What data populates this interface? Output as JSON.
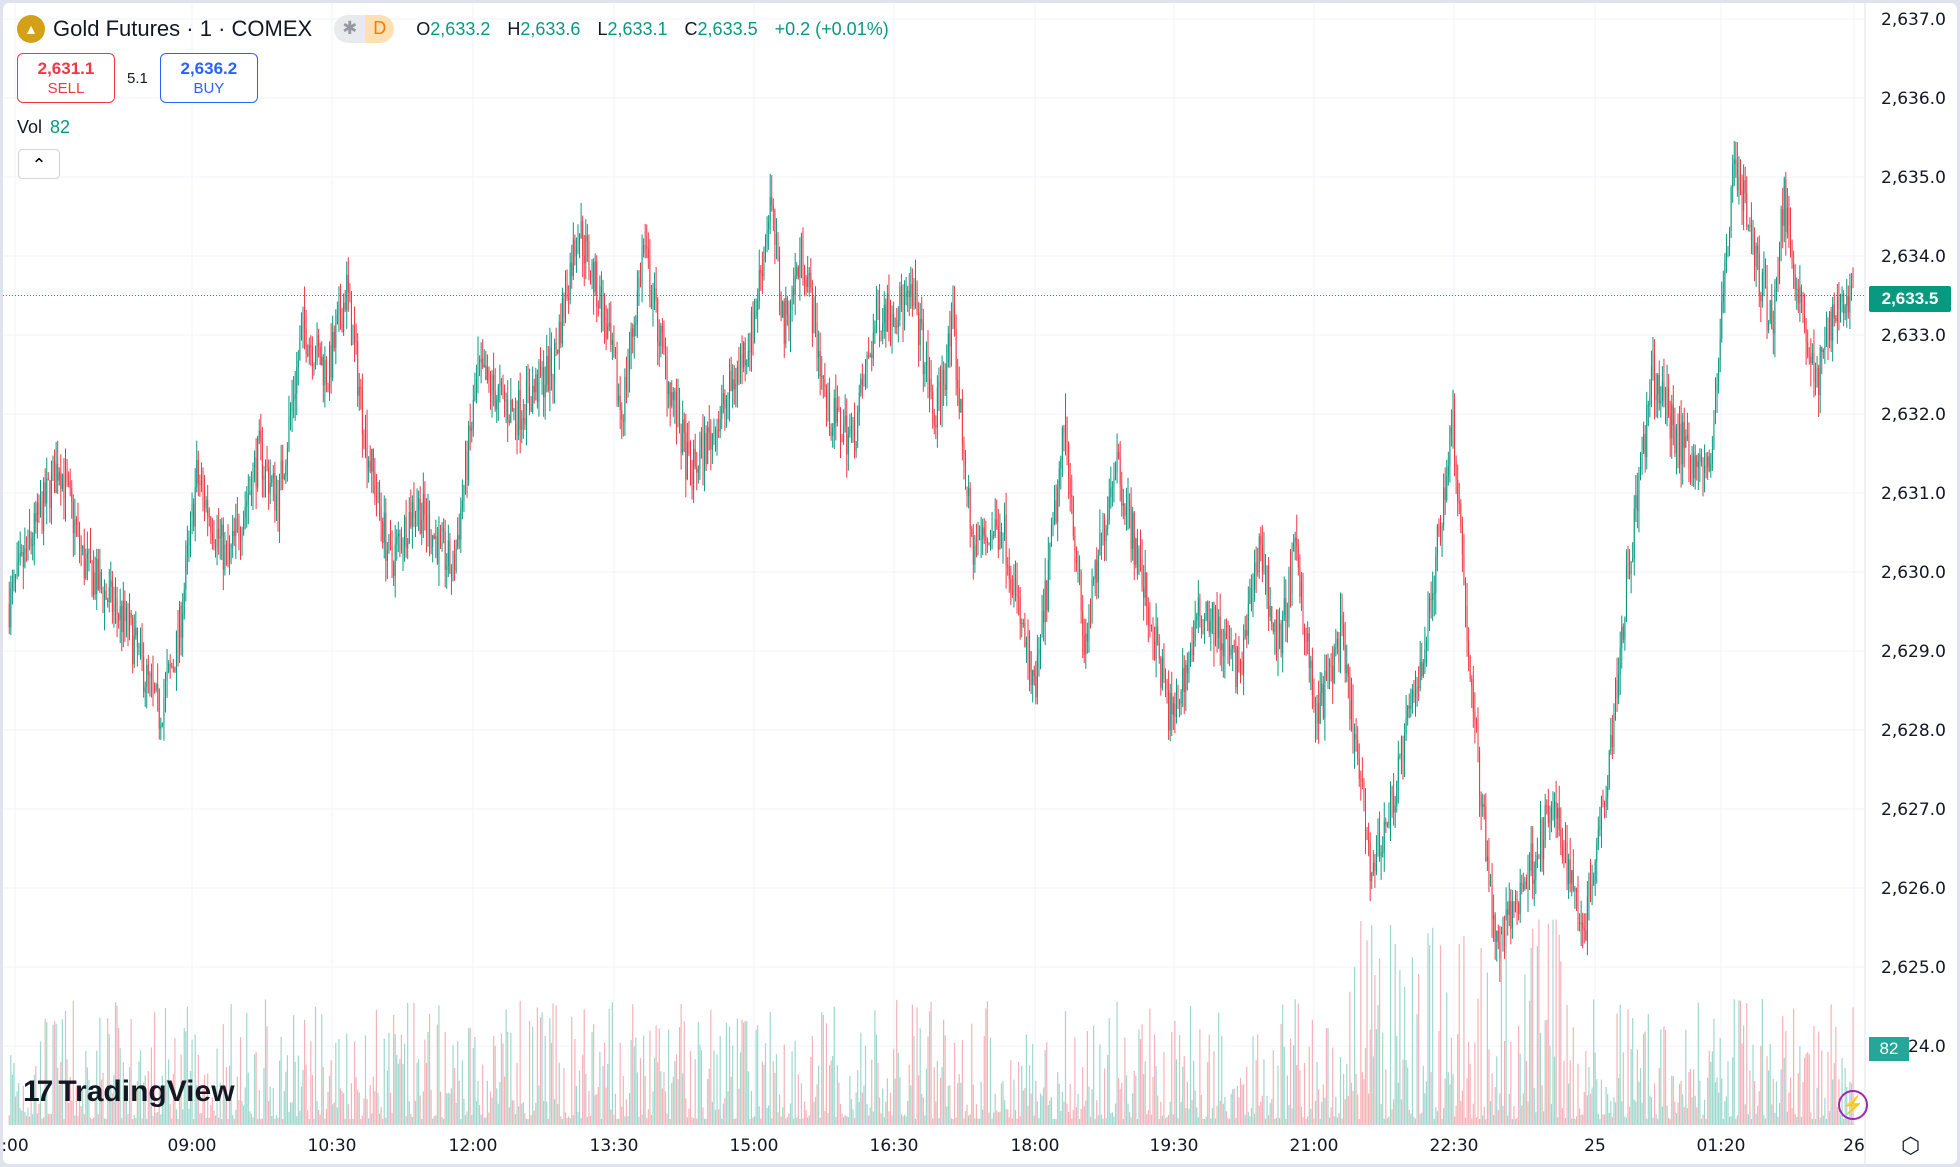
{
  "header": {
    "symbol": "Gold Futures · 1 · COMEX",
    "session_icon": "asterisk-icon",
    "session_badge": "D",
    "ohlc": {
      "o_label": "O",
      "o": "2,633.2",
      "h_label": "H",
      "h": "2,633.6",
      "l_label": "L",
      "l": "2,633.1",
      "c_label": "C",
      "c": "2,633.5",
      "change": "+0.2 (+0.01%)"
    }
  },
  "trade": {
    "sell_price": "2,631.1",
    "sell_label": "SELL",
    "spread": "5.1",
    "buy_price": "2,636.2",
    "buy_label": "BUY"
  },
  "volume": {
    "label": "Vol",
    "value": "82"
  },
  "price_axis": [
    "2,637.0",
    "2,636.0",
    "2,635.0",
    "2,634.0",
    "2,633.0",
    "2,632.0",
    "2,631.0",
    "2,630.0",
    "2,629.0",
    "2,628.0",
    "2,627.0",
    "2,626.0",
    "2,625.0",
    "24.0"
  ],
  "current_price": "2,633.5",
  "current_volume": "82",
  "time_axis": [
    ":00",
    "09:00",
    "10:30",
    "12:00",
    "13:30",
    "15:00",
    "16:30",
    "18:00",
    "19:30",
    "21:00",
    "22:30",
    "25",
    "01:20",
    "26"
  ],
  "brand": "TradingView",
  "colors": {
    "up": "#089981",
    "down": "#f23645",
    "vol_up": "#9fd8cf",
    "vol_down": "#f5b3b8"
  },
  "chart_data": {
    "type": "candlestick",
    "interval_minutes": 1,
    "price_range": [
      2624,
      2637
    ],
    "path_minutes_price": [
      [
        4,
        2629.6
      ],
      [
        36,
        2631.4
      ],
      [
        52,
        2630.1
      ],
      [
        80,
        2629.3
      ],
      [
        100,
        2628.2
      ],
      [
        112,
        2629.1
      ],
      [
        124,
        2631.2
      ],
      [
        144,
        2630.1
      ],
      [
        164,
        2631.5
      ],
      [
        176,
        2630.9
      ],
      [
        192,
        2633.1
      ],
      [
        208,
        2632.5
      ],
      [
        220,
        2633.6
      ],
      [
        232,
        2631.7
      ],
      [
        248,
        2630.1
      ],
      [
        264,
        2630.9
      ],
      [
        288,
        2630.0
      ],
      [
        304,
        2632.5
      ],
      [
        328,
        2632.0
      ],
      [
        352,
        2632.6
      ],
      [
        368,
        2634.4
      ],
      [
        384,
        2633.3
      ],
      [
        396,
        2632.0
      ],
      [
        410,
        2634.1
      ],
      [
        424,
        2632.6
      ],
      [
        440,
        2631.2
      ],
      [
        460,
        2632.0
      ],
      [
        480,
        2633.1
      ],
      [
        491,
        2634.7
      ],
      [
        500,
        2633.1
      ],
      [
        512,
        2634.1
      ],
      [
        528,
        2632.0
      ],
      [
        544,
        2631.7
      ],
      [
        560,
        2633.3
      ],
      [
        584,
        2633.4
      ],
      [
        596,
        2631.9
      ],
      [
        608,
        2633.1
      ],
      [
        620,
        2630.3
      ],
      [
        640,
        2630.6
      ],
      [
        660,
        2628.4
      ],
      [
        680,
        2631.9
      ],
      [
        692,
        2629.0
      ],
      [
        712,
        2631.5
      ],
      [
        728,
        2630.0
      ],
      [
        748,
        2628.1
      ],
      [
        768,
        2629.6
      ],
      [
        792,
        2628.7
      ],
      [
        804,
        2630.4
      ],
      [
        816,
        2629.0
      ],
      [
        828,
        2630.3
      ],
      [
        840,
        2628.1
      ],
      [
        856,
        2629.2
      ],
      [
        876,
        2626.2
      ],
      [
        888,
        2627.0
      ],
      [
        912,
        2629.3
      ],
      [
        928,
        2632.0
      ],
      [
        940,
        2628.4
      ],
      [
        956,
        2625.2
      ],
      [
        976,
        2626.2
      ],
      [
        992,
        2627.0
      ],
      [
        1012,
        2625.5
      ],
      [
        1028,
        2627.7
      ],
      [
        1040,
        2630.0
      ],
      [
        1056,
        2632.5
      ],
      [
        1072,
        2631.7
      ],
      [
        1092,
        2631.2
      ],
      [
        1108,
        2635.3
      ],
      [
        1120,
        2634.1
      ],
      [
        1132,
        2633.1
      ],
      [
        1140,
        2634.7
      ],
      [
        1160,
        2632.3
      ],
      [
        1172,
        2633.4
      ],
      [
        1184,
        2633.5
      ]
    ]
  }
}
